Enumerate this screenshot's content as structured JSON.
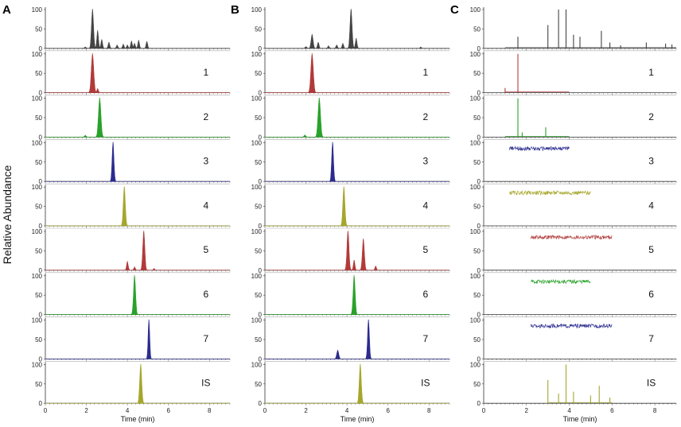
{
  "figure": {
    "ylabel": "Relative Abundance",
    "xlabel": "Time (min)",
    "xlim": [
      0,
      9
    ],
    "xticks": [
      "0",
      "2",
      "4",
      "6",
      "8"
    ],
    "yticks": [
      "0",
      "50",
      "100"
    ],
    "row_labels": [
      "",
      "1",
      "2",
      "3",
      "4",
      "5",
      "6",
      "7",
      "IS"
    ],
    "row_colors": [
      "#444444",
      "#b23a3a",
      "#2aa12a",
      "#2b2b8f",
      "#a6a62c",
      "#b23a3a",
      "#2aa12a",
      "#2b2b8f",
      "#a6a62c"
    ]
  },
  "chart_data": [
    {
      "panel": "A",
      "type": "area",
      "xlabel": "Time (min)",
      "ylabel": "Relative Abundance",
      "xlim": [
        0,
        9
      ],
      "ylim": [
        0,
        100
      ],
      "traces": [
        {
          "name": "",
          "style": "peaks",
          "peaks": [
            [
              1.95,
              3,
              0.05
            ],
            [
              2.3,
              100,
              0.05
            ],
            [
              2.55,
              45,
              0.04
            ],
            [
              2.75,
              22,
              0.04
            ],
            [
              3.1,
              15,
              0.04
            ],
            [
              3.5,
              8,
              0.04
            ],
            [
              3.8,
              10,
              0.04
            ],
            [
              4.0,
              8,
              0.04
            ],
            [
              4.2,
              18,
              0.04
            ],
            [
              4.35,
              12,
              0.04
            ],
            [
              4.55,
              20,
              0.04
            ],
            [
              4.95,
              17,
              0.04
            ]
          ]
        },
        {
          "name": "1",
          "style": "peaks",
          "peaks": [
            [
              2.3,
              100,
              0.06
            ],
            [
              2.55,
              10,
              0.04
            ]
          ]
        },
        {
          "name": "2",
          "style": "peaks",
          "peaks": [
            [
              1.95,
              4,
              0.05
            ],
            [
              2.65,
              100,
              0.06
            ]
          ]
        },
        {
          "name": "3",
          "style": "peaks",
          "peaks": [
            [
              3.3,
              100,
              0.045
            ]
          ]
        },
        {
          "name": "4",
          "style": "peaks",
          "peaks": [
            [
              3.85,
              100,
              0.05
            ]
          ]
        },
        {
          "name": "5",
          "style": "peaks",
          "peaks": [
            [
              4.0,
              22,
              0.04
            ],
            [
              4.35,
              8,
              0.04
            ],
            [
              4.8,
              100,
              0.05
            ],
            [
              5.3,
              4,
              0.04
            ]
          ]
        },
        {
          "name": "6",
          "style": "peaks",
          "peaks": [
            [
              4.35,
              100,
              0.05
            ]
          ]
        },
        {
          "name": "7",
          "style": "peaks",
          "peaks": [
            [
              5.05,
              100,
              0.04
            ]
          ]
        },
        {
          "name": "IS",
          "style": "peaks",
          "peaks": [
            [
              4.65,
              100,
              0.05
            ]
          ]
        }
      ]
    },
    {
      "panel": "B",
      "type": "area",
      "xlabel": "Time (min)",
      "ylabel": "Relative Abundance",
      "xlim": [
        0,
        9
      ],
      "ylim": [
        0,
        100
      ],
      "traces": [
        {
          "name": "",
          "style": "peaks",
          "peaks": [
            [
              2.0,
              4,
              0.05
            ],
            [
              2.3,
              35,
              0.05
            ],
            [
              2.6,
              15,
              0.04
            ],
            [
              3.1,
              6,
              0.04
            ],
            [
              3.5,
              8,
              0.04
            ],
            [
              3.8,
              12,
              0.04
            ],
            [
              4.2,
              100,
              0.05
            ],
            [
              4.45,
              25,
              0.04
            ],
            [
              7.6,
              3,
              0.04
            ]
          ]
        },
        {
          "name": "1",
          "style": "peaks",
          "peaks": [
            [
              2.3,
              100,
              0.06
            ]
          ]
        },
        {
          "name": "2",
          "style": "peaks",
          "peaks": [
            [
              1.95,
              5,
              0.05
            ],
            [
              2.65,
              100,
              0.06
            ]
          ]
        },
        {
          "name": "3",
          "style": "peaks",
          "peaks": [
            [
              3.3,
              100,
              0.045
            ]
          ]
        },
        {
          "name": "4",
          "style": "peaks",
          "peaks": [
            [
              3.85,
              100,
              0.05
            ]
          ]
        },
        {
          "name": "5",
          "style": "peaks",
          "peaks": [
            [
              4.05,
              100,
              0.05
            ],
            [
              4.35,
              25,
              0.04
            ],
            [
              4.8,
              80,
              0.05
            ],
            [
              5.4,
              10,
              0.04
            ]
          ]
        },
        {
          "name": "6",
          "style": "peaks",
          "peaks": [
            [
              4.35,
              100,
              0.05
            ]
          ]
        },
        {
          "name": "7",
          "style": "peaks",
          "peaks": [
            [
              3.55,
              22,
              0.05
            ],
            [
              5.05,
              100,
              0.045
            ]
          ]
        },
        {
          "name": "IS",
          "style": "peaks",
          "peaks": [
            [
              4.65,
              100,
              0.05
            ]
          ]
        }
      ]
    },
    {
      "panel": "C",
      "type": "line",
      "xlabel": "Time (min)",
      "ylabel": "Relative Abundance",
      "xlim": [
        0,
        9
      ],
      "ylim": [
        0,
        100
      ],
      "traces": [
        {
          "name": "",
          "style": "sticks",
          "range": [
            1,
            9
          ],
          "sticks": [
            [
              1.6,
              30
            ],
            [
              3.0,
              60
            ],
            [
              3.5,
              100
            ],
            [
              3.85,
              100
            ],
            [
              4.2,
              35
            ],
            [
              4.5,
              30
            ],
            [
              5.5,
              45
            ],
            [
              5.9,
              15
            ],
            [
              6.4,
              8
            ],
            [
              7.6,
              15
            ],
            [
              8.5,
              12
            ],
            [
              8.8,
              10
            ]
          ]
        },
        {
          "name": "1",
          "style": "sticks",
          "range": [
            1,
            4
          ],
          "sticks": [
            [
              1.6,
              100
            ],
            [
              1.0,
              12
            ]
          ]
        },
        {
          "name": "2",
          "style": "sticks",
          "range": [
            1,
            4
          ],
          "sticks": [
            [
              1.6,
              100
            ],
            [
              1.8,
              12
            ],
            [
              2.9,
              25
            ]
          ]
        },
        {
          "name": "3",
          "style": "noise",
          "range": [
            1.2,
            4.0
          ],
          "level": 85
        },
        {
          "name": "4",
          "style": "noise",
          "range": [
            1.2,
            5.0
          ],
          "level": 85
        },
        {
          "name": "5",
          "style": "noise",
          "range": [
            2.2,
            6.0
          ],
          "level": 85
        },
        {
          "name": "6",
          "style": "noise",
          "range": [
            2.2,
            5.0
          ],
          "level": 85
        },
        {
          "name": "7",
          "style": "noise",
          "range": [
            2.2,
            6.0
          ],
          "level": 85
        },
        {
          "name": "IS",
          "style": "sticks",
          "range": [
            3,
            6
          ],
          "sticks": [
            [
              3.0,
              60
            ],
            [
              3.5,
              25
            ],
            [
              3.85,
              100
            ],
            [
              4.2,
              30
            ],
            [
              5.0,
              20
            ],
            [
              5.4,
              45
            ],
            [
              5.9,
              15
            ]
          ]
        }
      ]
    }
  ]
}
